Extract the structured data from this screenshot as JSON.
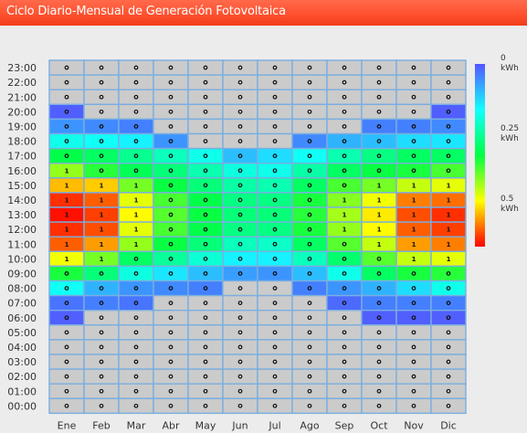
{
  "header": {
    "title": "Ciclo Diario-Mensual de Generación Fotovoltaica"
  },
  "chart_data": {
    "type": "heatmap",
    "title": "Ciclo Diario-Mensual de Generación Fotovoltaica",
    "x_categories": [
      "Ene",
      "Feb",
      "Mar",
      "Abr",
      "May",
      "Jun",
      "Jul",
      "Ago",
      "Sep",
      "Oct",
      "Nov",
      "Dic"
    ],
    "y_categories": [
      "00:00",
      "01:00",
      "02:00",
      "03:00",
      "04:00",
      "05:00",
      "06:00",
      "07:00",
      "08:00",
      "09:00",
      "10:00",
      "11:00",
      "12:00",
      "13:00",
      "14:00",
      "15:00",
      "16:00",
      "17:00",
      "18:00",
      "19:00",
      "20:00",
      "21:00",
      "22:00",
      "23:00"
    ],
    "colorscale": {
      "min": 0,
      "max": 0.65,
      "stops": [
        "#5555ff",
        "#11ffff",
        "#00ff44",
        "#ffff00",
        "#ff0000"
      ],
      "ticks": [
        {
          "value": 0,
          "label": "0",
          "unit": "kWh"
        },
        {
          "value": 0.25,
          "label": "0.25",
          "unit": "kWh"
        },
        {
          "value": 0.5,
          "label": "0.5",
          "unit": "kWh"
        }
      ]
    },
    "nodata_color": "#cbcbcb",
    "values_by_hour": {
      "06": [
        0.01,
        null,
        null,
        null,
        null,
        null,
        null,
        null,
        null,
        0.01,
        0.01,
        0.01
      ],
      "07": [
        0.03,
        0.04,
        0.03,
        null,
        null,
        null,
        null,
        null,
        0.02,
        0.04,
        0.04,
        0.04
      ],
      "08": [
        0.17,
        0.09,
        0.06,
        0.05,
        0.04,
        null,
        null,
        0.04,
        0.06,
        0.09,
        0.13,
        0.18
      ],
      "09": [
        0.34,
        0.28,
        0.19,
        0.14,
        0.1,
        0.07,
        0.06,
        0.1,
        0.18,
        0.3,
        0.34,
        0.35
      ],
      "10": [
        0.48,
        0.4,
        0.3,
        0.25,
        0.2,
        0.15,
        0.15,
        0.22,
        0.29,
        0.38,
        0.45,
        0.47
      ],
      "11": [
        0.59,
        0.55,
        0.42,
        0.33,
        0.28,
        0.22,
        0.21,
        0.3,
        0.38,
        0.45,
        0.55,
        0.57
      ],
      "12": [
        0.62,
        0.6,
        0.47,
        0.37,
        0.32,
        0.27,
        0.27,
        0.34,
        0.42,
        0.49,
        0.59,
        0.61
      ],
      "13": [
        0.64,
        0.61,
        0.49,
        0.38,
        0.33,
        0.28,
        0.28,
        0.35,
        0.43,
        0.5,
        0.6,
        0.62
      ],
      "14": [
        0.62,
        0.59,
        0.47,
        0.37,
        0.32,
        0.27,
        0.27,
        0.34,
        0.41,
        0.48,
        0.57,
        0.58
      ],
      "15": [
        0.53,
        0.52,
        0.4,
        0.33,
        0.28,
        0.24,
        0.23,
        0.3,
        0.37,
        0.4,
        0.45,
        0.47
      ],
      "16": [
        0.42,
        0.35,
        0.31,
        0.28,
        0.23,
        0.19,
        0.18,
        0.24,
        0.3,
        0.33,
        0.34,
        0.37
      ],
      "17": [
        0.32,
        0.3,
        0.26,
        0.22,
        0.18,
        0.1,
        0.13,
        0.17,
        0.23,
        0.27,
        0.3,
        0.3
      ],
      "18": [
        0.18,
        0.17,
        0.15,
        0.06,
        null,
        null,
        null,
        0.05,
        0.09,
        0.1,
        0.13,
        0.14
      ],
      "19": [
        0.06,
        0.05,
        0.04,
        null,
        null,
        null,
        null,
        null,
        null,
        0.04,
        0.04,
        0.05
      ],
      "20": [
        0.01,
        null,
        null,
        null,
        null,
        null,
        null,
        null,
        null,
        null,
        null,
        0.01
      ]
    }
  }
}
